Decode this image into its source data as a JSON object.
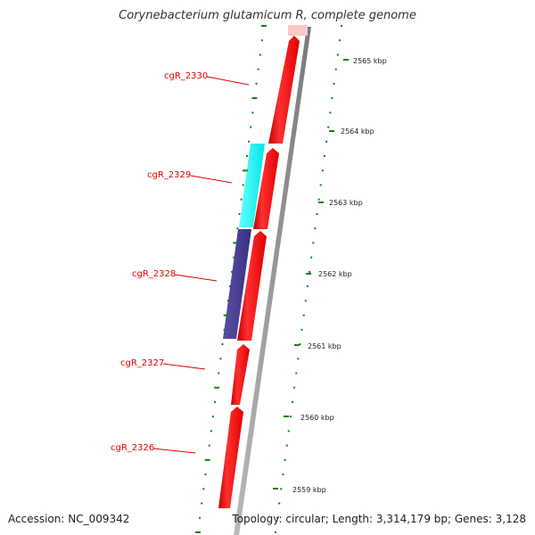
{
  "map": {
    "title": "Corynebacterium glutamicum R, complete genome",
    "accession": "Accession: NC_009342",
    "summary": "Topology: circular; Length: 3,314,179 bp; Genes: 3,128"
  },
  "genes": [
    {
      "id": "cgR_2330"
    },
    {
      "id": "cgR_2329"
    },
    {
      "id": "cgR_2328"
    },
    {
      "id": "cgR_2327"
    },
    {
      "id": "cgR_2326"
    }
  ],
  "scale": [
    {
      "label": "2565 kbp"
    },
    {
      "label": "2564 kbp"
    },
    {
      "label": "2563 kbp"
    },
    {
      "label": "2562 kbp"
    },
    {
      "label": "2561 kbp"
    },
    {
      "label": "2560 kbp"
    },
    {
      "label": "2559 kbp"
    }
  ],
  "colors": {
    "cds": "#ff0000",
    "cds_light": "#ff6a6a",
    "cds_faded": "#ffc8c8",
    "gene_cyan": "#00ffff",
    "gene_purple": "#483d8b",
    "gc_skew_green": "#128012",
    "backbone_gray": "#999999",
    "label_red": "#e00000"
  }
}
